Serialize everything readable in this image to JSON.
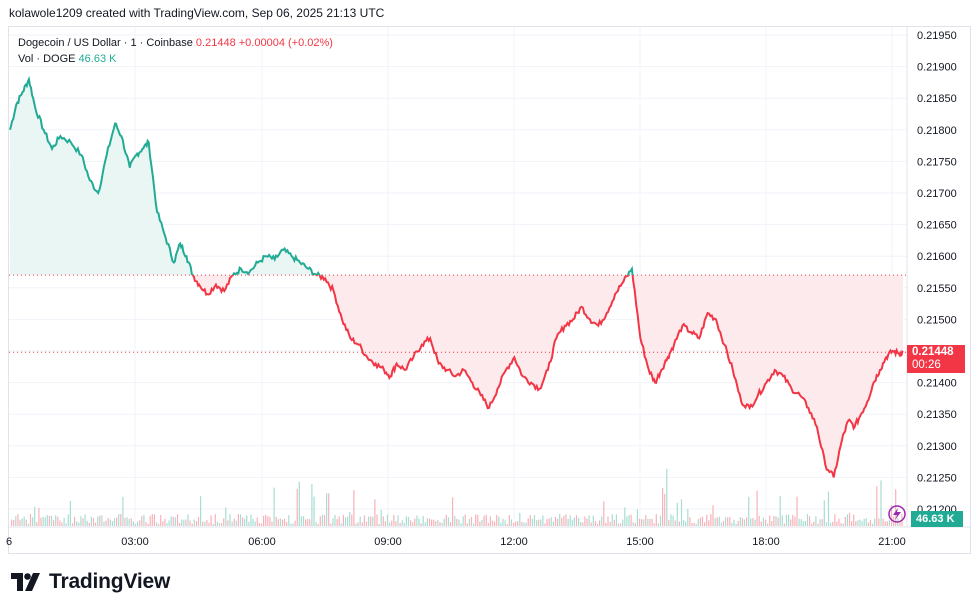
{
  "credit": "kolawole1209 created with TradingView.com, Sep 06, 2025 21:13 UTC",
  "legend": {
    "symbol": "Dogecoin / US Dollar · 1 · Coinbase",
    "price": "0.21448",
    "change": "+0.00004 (+0.02%)",
    "vol_label": "Vol · DOGE",
    "vol_value": "46.63 K"
  },
  "badges": {
    "price": "0.21448",
    "countdown": "00:26",
    "volume": "46.63 K"
  },
  "logo_text": "TradingView",
  "icons": [
    "tradingview-logo-icon",
    "lightning-star-icon"
  ],
  "colors": {
    "up": "#22ab94",
    "down": "#f23645",
    "grid": "#f0f3fa",
    "up_fill": "#e9f6f3",
    "down_fill": "#fdeaec"
  },
  "chart_data": {
    "type": "area",
    "title": "",
    "xlabel": "",
    "ylabel": "",
    "x_ticks": [
      "6",
      "03:00",
      "06:00",
      "09:00",
      "12:00",
      "15:00",
      "18:00",
      "21:00"
    ],
    "y_ticks": [
      "0.21950",
      "0.21900",
      "0.21850",
      "0.21800",
      "0.21750",
      "0.21700",
      "0.21650",
      "0.21600",
      "0.21550",
      "0.21500",
      "0.21450",
      "0.21400",
      "0.21350",
      "0.21300",
      "0.21250",
      "0.21200"
    ],
    "ylim": [
      0.212,
      0.2195
    ],
    "xlim_hours": [
      0,
      21.25
    ],
    "baseline": 0.2157,
    "last_price": 0.21448,
    "series": [
      {
        "x_hours": [
          0.0,
          0.15,
          0.3,
          0.45,
          0.6,
          0.8,
          1.0,
          1.2,
          1.45,
          1.7,
          1.9,
          2.1,
          2.3,
          2.5,
          2.65,
          2.85,
          3.0,
          3.15,
          3.3,
          3.5,
          3.7,
          3.9,
          4.05,
          4.2,
          4.35,
          4.5,
          4.7,
          4.9,
          5.1,
          5.3,
          5.5,
          5.7,
          5.9,
          6.1,
          6.3,
          6.5,
          6.7,
          6.9,
          7.1,
          7.3,
          7.5,
          7.7,
          7.9,
          8.1,
          8.3,
          8.5,
          8.7,
          8.9,
          9.05,
          9.2,
          9.4,
          9.6,
          9.8,
          10.0,
          10.2,
          10.4,
          10.6,
          10.8,
          11.0,
          11.2,
          11.4,
          11.6,
          11.8,
          12.0,
          12.2,
          12.4,
          12.6,
          12.8,
          13.0,
          13.2,
          13.4,
          13.6,
          13.8,
          14.0,
          14.2,
          14.4,
          14.6,
          14.8,
          15.0,
          15.2,
          15.35,
          15.5,
          15.65,
          15.8,
          16.0,
          16.2,
          16.4,
          16.6,
          16.8,
          17.0,
          17.2,
          17.4,
          17.6,
          17.8,
          18.0,
          18.2,
          18.4,
          18.6,
          18.8,
          19.0,
          19.2,
          19.4,
          19.6,
          19.8,
          19.95,
          20.1,
          20.25,
          20.4,
          20.55,
          20.7,
          20.85,
          21.0,
          21.15,
          21.25
        ],
        "values": [
          0.218,
          0.2184,
          0.2186,
          0.2188,
          0.21835,
          0.218,
          0.2177,
          0.2179,
          0.2178,
          0.2176,
          0.2172,
          0.217,
          0.2176,
          0.2181,
          0.2179,
          0.2174,
          0.2176,
          0.2177,
          0.2178,
          0.2167,
          0.2163,
          0.2159,
          0.2162,
          0.216,
          0.2157,
          0.21555,
          0.2154,
          0.21555,
          0.21545,
          0.2157,
          0.2158,
          0.21575,
          0.2159,
          0.216,
          0.21595,
          0.2161,
          0.216,
          0.2159,
          0.2158,
          0.2157,
          0.21565,
          0.21545,
          0.215,
          0.2147,
          0.2146,
          0.2144,
          0.2143,
          0.2142,
          0.2141,
          0.2143,
          0.2142,
          0.2144,
          0.2146,
          0.2147,
          0.2143,
          0.2142,
          0.2141,
          0.2142,
          0.214,
          0.2138,
          0.2136,
          0.2139,
          0.2142,
          0.2144,
          0.2141,
          0.214,
          0.2139,
          0.2142,
          0.2147,
          0.2149,
          0.215,
          0.2152,
          0.215,
          0.2149,
          0.2151,
          0.2154,
          0.2156,
          0.2158,
          0.2147,
          0.2142,
          0.214,
          0.2142,
          0.2144,
          0.2146,
          0.2149,
          0.2148,
          0.2147,
          0.2151,
          0.215,
          0.2146,
          0.2142,
          0.2137,
          0.2136,
          0.2138,
          0.214,
          0.2142,
          0.2141,
          0.2139,
          0.2138,
          0.2136,
          0.2133,
          0.2127,
          0.2125,
          0.2131,
          0.2134,
          0.2133,
          0.2135,
          0.2137,
          0.214,
          0.2142,
          0.2144,
          0.2145,
          0.21446,
          0.21448
        ]
      }
    ]
  },
  "volume_data": {
    "label": "Vol · DOGE",
    "last": "46.63 K"
  }
}
